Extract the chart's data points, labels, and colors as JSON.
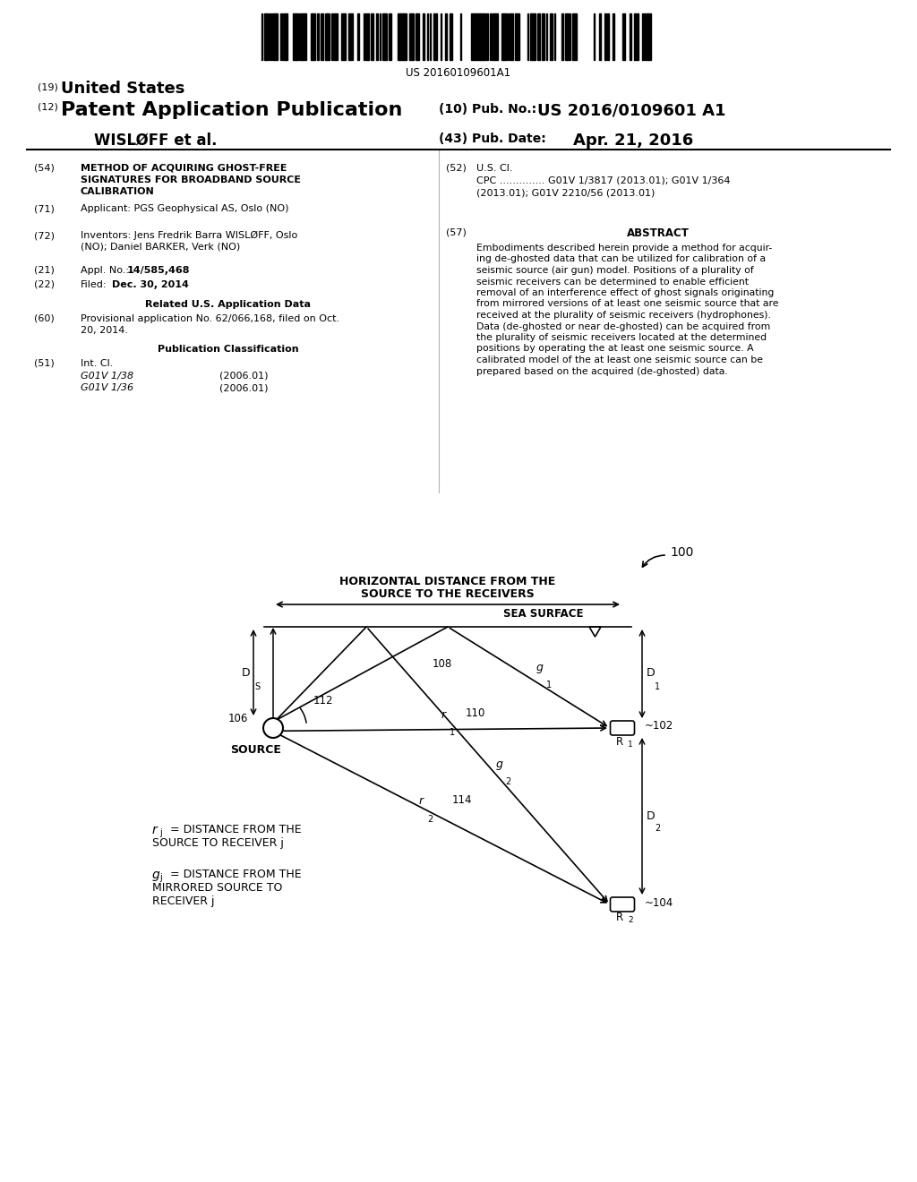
{
  "bg_color": "#ffffff",
  "barcode_text": "US 20160109601A1",
  "title_19": "(19) United States",
  "title_12": "(12) Patent Application Publication",
  "pub_no_label": "(10) Pub. No.:",
  "pub_no_value": "US 2016/0109601 A1",
  "inventor_label": "WISLØFF et al.",
  "pub_date_label": "(43) Pub. Date:",
  "pub_date_value": "Apr. 21, 2016",
  "field54_label": "(54)",
  "field54_lines": [
    "METHOD OF ACQUIRING GHOST-FREE",
    "SIGNATURES FOR BROADBAND SOURCE",
    "CALIBRATION"
  ],
  "field52_label": "(52)",
  "field52_title": "U.S. Cl.",
  "field52_cpc_lines": [
    "CPC .............. G01V 1/3817 (2013.01); G01V 1/364",
    "(2013.01); G01V 2210/56 (2013.01)"
  ],
  "field71_label": "(71)",
  "field71_text": "Applicant: PGS Geophysical AS, Oslo (NO)",
  "field57_label": "(57)",
  "field57_title": "ABSTRACT",
  "abstract_lines": [
    "Embodiments described herein provide a method for acquir-",
    "ing de-ghosted data that can be utilized for calibration of a",
    "seismic source (air gun) model. Positions of a plurality of",
    "seismic receivers can be determined to enable efficient",
    "removal of an interference effect of ghost signals originating",
    "from mirrored versions of at least one seismic source that are",
    "received at the plurality of seismic receivers (hydrophones).",
    "Data (de-ghosted or near de-ghosted) can be acquired from",
    "the plurality of seismic receivers located at the determined",
    "positions by operating the at least one seismic source. A",
    "calibrated model of the at least one seismic source can be",
    "prepared based on the acquired (de-ghosted) data."
  ],
  "field72_label": "(72)",
  "field72_lines": [
    "Inventors: Jens Fredrik Barra WISLØFF, Oslo",
    "(NO); Daniel BARKER, Verk (NO)"
  ],
  "field21_label": "(21)",
  "field21_text": "Appl. No.: 14/585,468",
  "field22_label": "(22)",
  "field22_filed": "Filed:",
  "field22_date": "Dec. 30, 2014",
  "related_title": "Related U.S. Application Data",
  "field60_label": "(60)",
  "field60_lines": [
    "Provisional application No. 62/066,168, filed on Oct.",
    "20, 2014."
  ],
  "pub_class_title": "Publication Classification",
  "field51_label": "(51)",
  "field51_title": "Int. Cl.",
  "field51_g01v138": "G01V 1/38",
  "field51_g01v138_date": "(2006.01)",
  "field51_g01v136": "G01V 1/36",
  "field51_g01v136_date": "(2006.01)",
  "diagram_num": "100",
  "horiz_label_line1": "HORIZONTAL DISTANCE FROM THE",
  "horiz_label_line2": "SOURCE TO THE RECEIVERS",
  "sea_surface_label": "SEA SURFACE",
  "source_label": "SOURCE",
  "source_num": "106",
  "label_108": "108",
  "label_110": "110",
  "label_112": "112",
  "label_114": "114",
  "label_102": "102",
  "label_104": "104"
}
